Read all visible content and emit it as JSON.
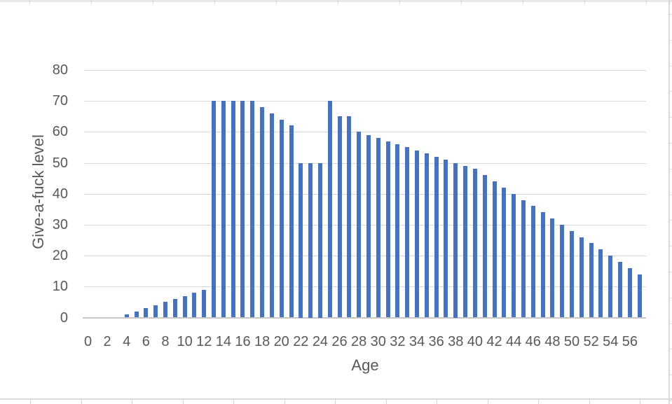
{
  "chart_data": {
    "type": "bar",
    "title": "",
    "xlabel": "Age",
    "ylabel": "Give-a-fuck level",
    "x": [
      0,
      1,
      2,
      3,
      4,
      5,
      6,
      7,
      8,
      9,
      10,
      11,
      12,
      13,
      14,
      15,
      16,
      17,
      18,
      19,
      20,
      21,
      22,
      23,
      24,
      25,
      26,
      27,
      28,
      29,
      30,
      31,
      32,
      33,
      34,
      35,
      36,
      37,
      38,
      39,
      40,
      41,
      42,
      43,
      44,
      45,
      46,
      47,
      48,
      49,
      50,
      51,
      52,
      53,
      54,
      55,
      56,
      57
    ],
    "values": [
      0,
      0,
      0,
      0,
      1,
      2,
      3,
      4,
      5,
      6,
      7,
      8,
      9,
      70,
      70,
      70,
      70,
      70,
      68,
      66,
      64,
      62,
      50,
      50,
      50,
      70,
      65,
      65,
      60,
      59,
      58,
      57,
      56,
      55,
      54,
      53,
      52,
      51,
      50,
      49,
      48,
      46,
      44,
      42,
      40,
      38,
      36,
      34,
      32,
      30,
      28,
      26,
      24,
      22,
      20,
      18,
      16,
      14
    ],
    "ylim": [
      0,
      80
    ],
    "yticks": [
      0,
      10,
      20,
      30,
      40,
      50,
      60,
      70,
      80
    ],
    "xticks": [
      0,
      2,
      4,
      6,
      8,
      10,
      12,
      14,
      16,
      18,
      20,
      22,
      24,
      26,
      28,
      30,
      32,
      34,
      36,
      38,
      40,
      42,
      44,
      46,
      48,
      50,
      52,
      54,
      56
    ],
    "grid": "horizontal",
    "legend": "none",
    "colors": {
      "bar": "#4472C4",
      "gridline": "#D9D9D9",
      "axis_line": "#C8C6C6",
      "label": "#595959"
    }
  }
}
